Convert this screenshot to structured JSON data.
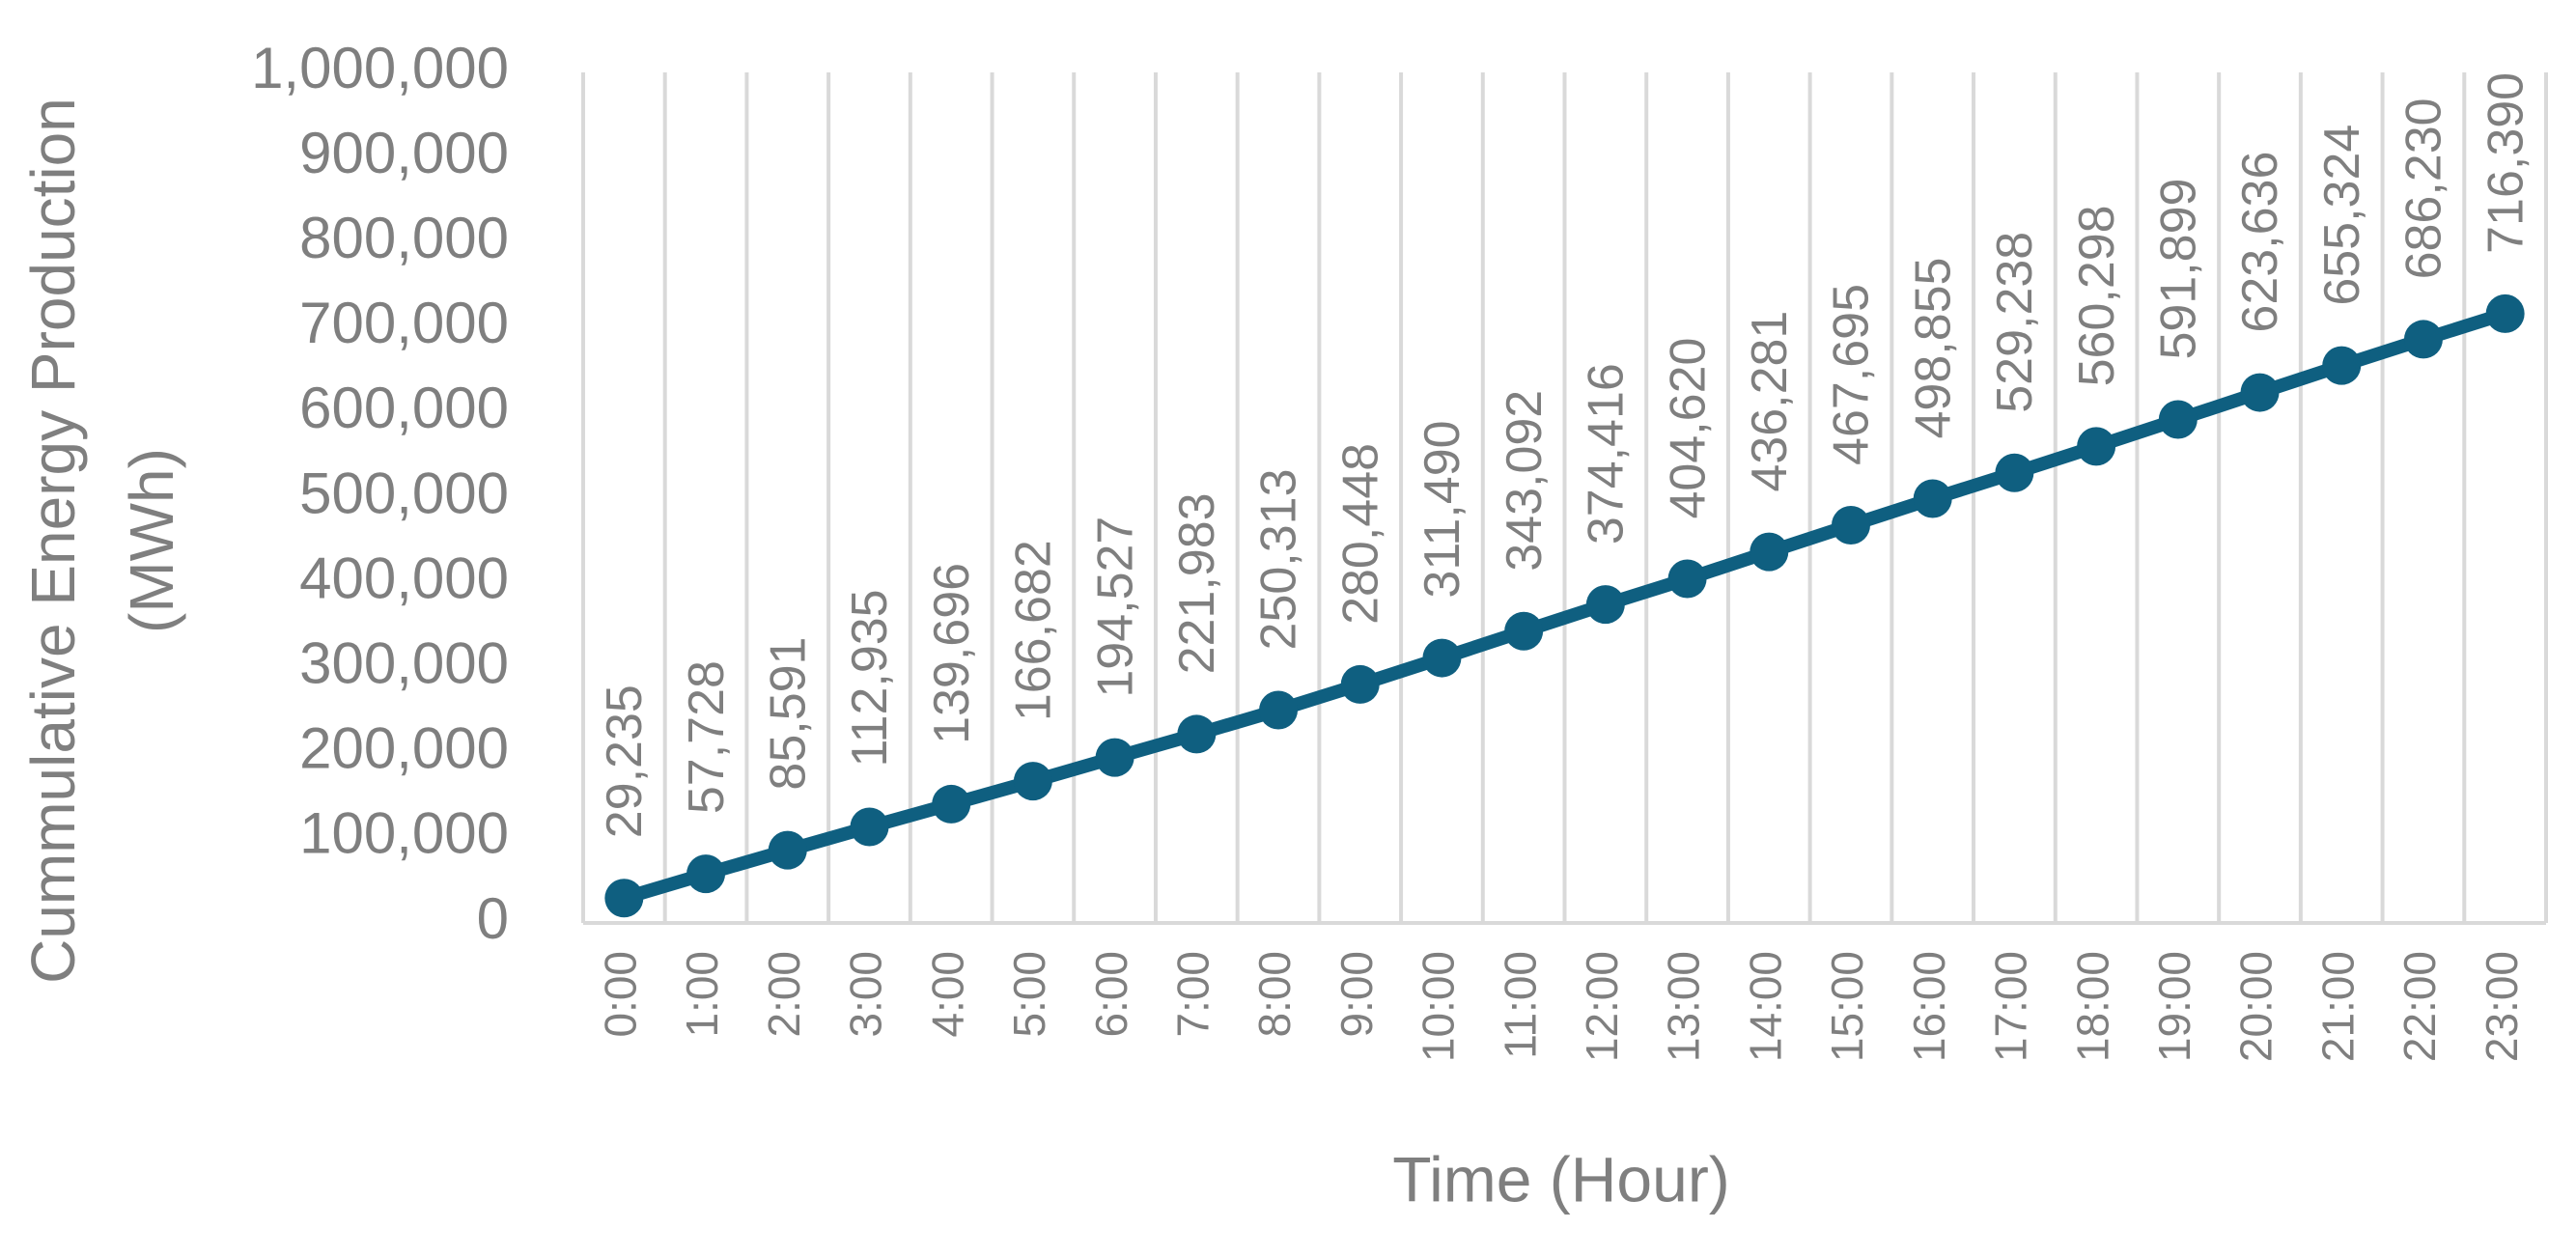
{
  "chart_data": {
    "type": "line",
    "y_label": [
      "Cummulative Energy Production",
      "(MWh)"
    ],
    "x_label": "Time (Hour)",
    "categories": [
      "0:00",
      "1:00",
      "2:00",
      "3:00",
      "4:00",
      "5:00",
      "6:00",
      "7:00",
      "8:00",
      "9:00",
      "10:00",
      "11:00",
      "12:00",
      "13:00",
      "14:00",
      "15:00",
      "16:00",
      "17:00",
      "18:00",
      "19:00",
      "20:00",
      "21:00",
      "22:00",
      "23:00"
    ],
    "series": [
      {
        "color": "#0f5f80",
        "values": [
          29235,
          57728,
          85591,
          112935,
          139696,
          166682,
          194527,
          221983,
          250313,
          280448,
          311490,
          343092,
          374416,
          404620,
          436281,
          467695,
          498855,
          529238,
          560298,
          591899,
          623636,
          655324,
          686230,
          716390
        ],
        "value_labels": [
          "29,235",
          "57,728",
          "85,591",
          "112,935",
          "139,696",
          "166,682",
          "194,527",
          "221,983",
          "250,313",
          "280,448",
          "311,490",
          "343,092",
          "374,416",
          "404,620",
          "436,281",
          "467,695",
          "498,855",
          "529,238",
          "560,298",
          "591,899",
          "623,636",
          "655,324",
          "686,230",
          "716,390"
        ]
      }
    ],
    "ylim": [
      0,
      1000000
    ],
    "yticks": [
      0,
      {
        "value": 100000,
        "label": "100,000"
      },
      {
        "value": 200000,
        "label": "200,000"
      },
      {
        "value": 300000,
        "label": "300,000"
      },
      {
        "value": 400000,
        "label": "400,000"
      },
      {
        "value": 500000,
        "label": "500,000"
      },
      {
        "value": 600000,
        "label": "600,000"
      },
      {
        "value": 700000,
        "label": "700,000"
      },
      {
        "value": 800000,
        "label": "800,000"
      },
      {
        "value": 900000,
        "label": "900,000"
      },
      {
        "value": 1000000,
        "label": "1,000,000"
      }
    ],
    "grid": "x"
  }
}
